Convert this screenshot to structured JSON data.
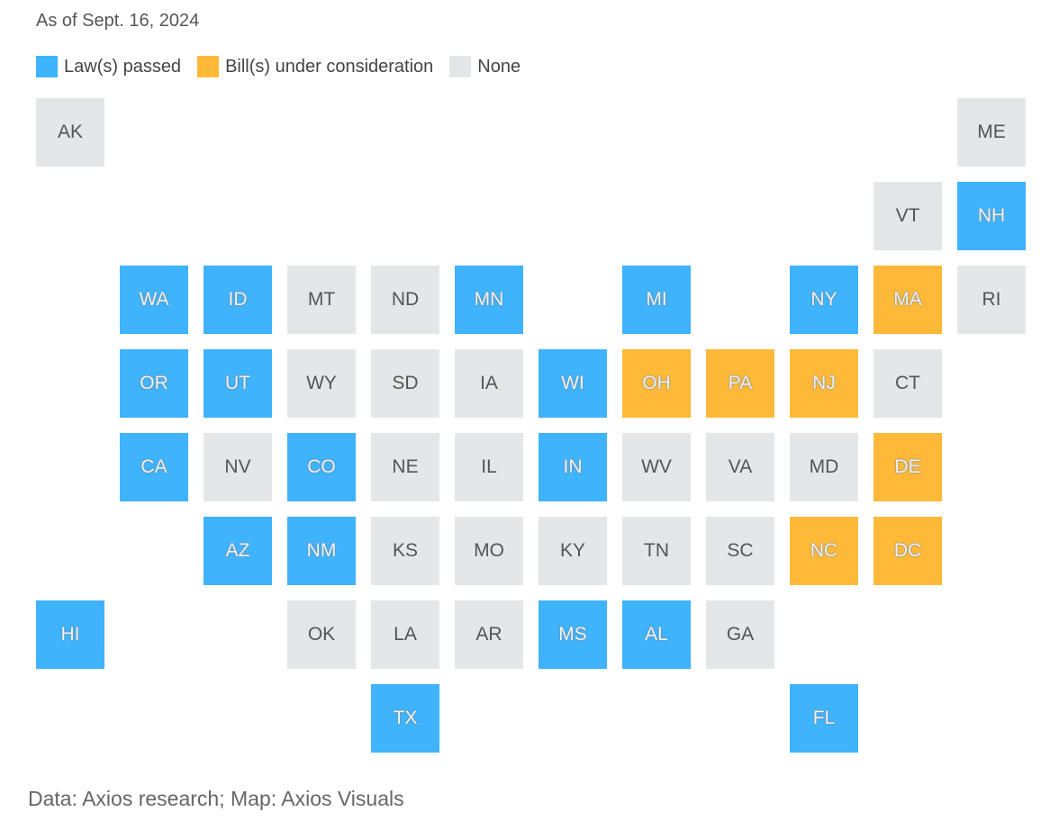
{
  "subtitle": "As of Sept. 16, 2024",
  "legend": [
    {
      "key": "law",
      "label": "Law(s) passed",
      "color": "#3fb3fb"
    },
    {
      "key": "bill",
      "label": "Bill(s) under consideration",
      "color": "#ffb939"
    },
    {
      "key": "none",
      "label": "None",
      "color": "#e5e6e7"
    }
  ],
  "states": [
    {
      "abbr": "AK",
      "status": "none",
      "row": 0,
      "col": 0
    },
    {
      "abbr": "ME",
      "status": "none",
      "row": 0,
      "col": 11
    },
    {
      "abbr": "VT",
      "status": "none",
      "row": 1,
      "col": 10
    },
    {
      "abbr": "NH",
      "status": "law",
      "row": 1,
      "col": 11
    },
    {
      "abbr": "WA",
      "status": "law",
      "row": 2,
      "col": 1
    },
    {
      "abbr": "ID",
      "status": "law",
      "row": 2,
      "col": 2
    },
    {
      "abbr": "MT",
      "status": "none",
      "row": 2,
      "col": 3
    },
    {
      "abbr": "ND",
      "status": "none",
      "row": 2,
      "col": 4
    },
    {
      "abbr": "MN",
      "status": "law",
      "row": 2,
      "col": 5
    },
    {
      "abbr": "MI",
      "status": "law",
      "row": 2,
      "col": 7
    },
    {
      "abbr": "NY",
      "status": "law",
      "row": 2,
      "col": 9
    },
    {
      "abbr": "MA",
      "status": "bill",
      "row": 2,
      "col": 10
    },
    {
      "abbr": "RI",
      "status": "none",
      "row": 2,
      "col": 11
    },
    {
      "abbr": "OR",
      "status": "law",
      "row": 3,
      "col": 1
    },
    {
      "abbr": "UT",
      "status": "law",
      "row": 3,
      "col": 2
    },
    {
      "abbr": "WY",
      "status": "none",
      "row": 3,
      "col": 3
    },
    {
      "abbr": "SD",
      "status": "none",
      "row": 3,
      "col": 4
    },
    {
      "abbr": "IA",
      "status": "none",
      "row": 3,
      "col": 5
    },
    {
      "abbr": "WI",
      "status": "law",
      "row": 3,
      "col": 6
    },
    {
      "abbr": "OH",
      "status": "bill",
      "row": 3,
      "col": 7
    },
    {
      "abbr": "PA",
      "status": "bill",
      "row": 3,
      "col": 8
    },
    {
      "abbr": "NJ",
      "status": "bill",
      "row": 3,
      "col": 9
    },
    {
      "abbr": "CT",
      "status": "none",
      "row": 3,
      "col": 10
    },
    {
      "abbr": "CA",
      "status": "law",
      "row": 4,
      "col": 1
    },
    {
      "abbr": "NV",
      "status": "none",
      "row": 4,
      "col": 2
    },
    {
      "abbr": "CO",
      "status": "law",
      "row": 4,
      "col": 3
    },
    {
      "abbr": "NE",
      "status": "none",
      "row": 4,
      "col": 4
    },
    {
      "abbr": "IL",
      "status": "none",
      "row": 4,
      "col": 5
    },
    {
      "abbr": "IN",
      "status": "law",
      "row": 4,
      "col": 6
    },
    {
      "abbr": "WV",
      "status": "none",
      "row": 4,
      "col": 7
    },
    {
      "abbr": "VA",
      "status": "none",
      "row": 4,
      "col": 8
    },
    {
      "abbr": "MD",
      "status": "none",
      "row": 4,
      "col": 9
    },
    {
      "abbr": "DE",
      "status": "bill",
      "row": 4,
      "col": 10
    },
    {
      "abbr": "AZ",
      "status": "law",
      "row": 5,
      "col": 2
    },
    {
      "abbr": "NM",
      "status": "law",
      "row": 5,
      "col": 3
    },
    {
      "abbr": "KS",
      "status": "none",
      "row": 5,
      "col": 4
    },
    {
      "abbr": "MO",
      "status": "none",
      "row": 5,
      "col": 5
    },
    {
      "abbr": "KY",
      "status": "none",
      "row": 5,
      "col": 6
    },
    {
      "abbr": "TN",
      "status": "none",
      "row": 5,
      "col": 7
    },
    {
      "abbr": "SC",
      "status": "none",
      "row": 5,
      "col": 8
    },
    {
      "abbr": "NC",
      "status": "bill",
      "row": 5,
      "col": 9
    },
    {
      "abbr": "DC",
      "status": "bill",
      "row": 5,
      "col": 10
    },
    {
      "abbr": "HI",
      "status": "law",
      "row": 6,
      "col": 0
    },
    {
      "abbr": "OK",
      "status": "none",
      "row": 6,
      "col": 3
    },
    {
      "abbr": "LA",
      "status": "none",
      "row": 6,
      "col": 4
    },
    {
      "abbr": "AR",
      "status": "none",
      "row": 6,
      "col": 5
    },
    {
      "abbr": "MS",
      "status": "law",
      "row": 6,
      "col": 6
    },
    {
      "abbr": "AL",
      "status": "law",
      "row": 6,
      "col": 7
    },
    {
      "abbr": "GA",
      "status": "none",
      "row": 6,
      "col": 8
    },
    {
      "abbr": "TX",
      "status": "law",
      "row": 7,
      "col": 4
    },
    {
      "abbr": "FL",
      "status": "law",
      "row": 7,
      "col": 9
    }
  ],
  "source": "Data: Axios research; Map: Axios Visuals"
}
